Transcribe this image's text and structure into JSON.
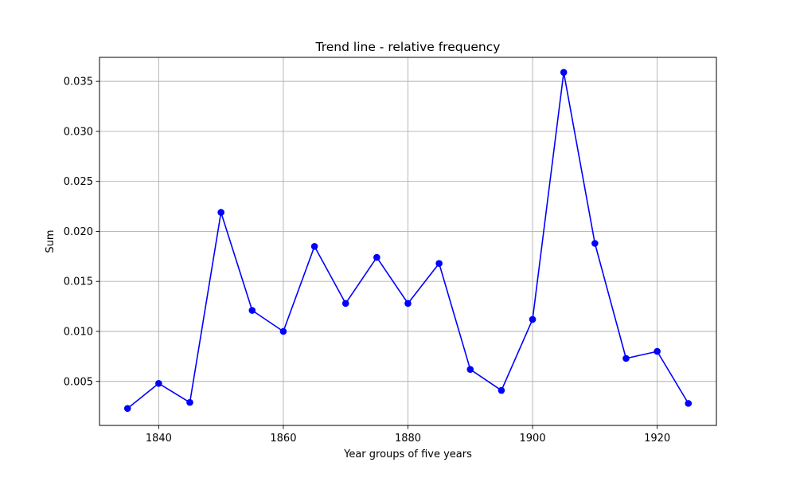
{
  "chart_data": {
    "type": "line",
    "title": "Trend line - relative frequency",
    "xlabel": "Year groups of five years",
    "ylabel": "Sum",
    "x": [
      1835,
      1840,
      1845,
      1850,
      1855,
      1860,
      1865,
      1870,
      1875,
      1880,
      1885,
      1890,
      1895,
      1900,
      1905,
      1910,
      1915,
      1920,
      1925
    ],
    "series": [
      {
        "values": [
          0.0023,
          0.0048,
          0.0029,
          0.0219,
          0.0121,
          0.01,
          0.0185,
          0.0128,
          0.0174,
          0.0128,
          0.0168,
          0.0062,
          0.0041,
          0.0112,
          0.0359,
          0.0188,
          0.0073,
          0.008,
          0.0028
        ],
        "color": "#0000ff"
      }
    ],
    "xlim": [
      1830.5,
      1929.5
    ],
    "ylim": [
      0.0006,
      0.0374
    ],
    "xticks": [
      1840,
      1860,
      1880,
      1900,
      1920
    ],
    "xtick_labels": [
      "1840",
      "1860",
      "1880",
      "1900",
      "1920"
    ],
    "yticks": [
      0.005,
      0.01,
      0.015,
      0.02,
      0.025,
      0.03,
      0.035
    ],
    "ytick_labels": [
      "0.005",
      "0.010",
      "0.015",
      "0.020",
      "0.025",
      "0.030",
      "0.035"
    ],
    "grid": true,
    "legend": "none"
  }
}
